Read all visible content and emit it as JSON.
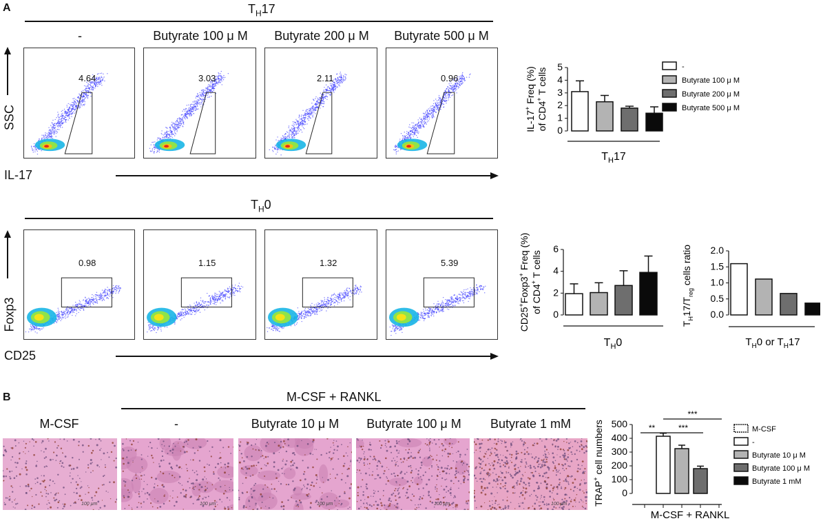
{
  "panel_a": {
    "label": "A",
    "th17_group": "T",
    "th17_sub": "H",
    "th17_tail": "17",
    "th0_group": "T",
    "th0_sub": "H",
    "th0_tail": "0",
    "conditions": [
      "-",
      "Butyrate 100 μ M",
      "Butyrate 200 μ M",
      "Butyrate 500 μ M"
    ],
    "row1_y_label": "SSC",
    "row1_x_label": "IL-17",
    "row1_gate_values": [
      "4.64",
      "3.03",
      "2.11",
      "0.96"
    ],
    "row2_y_label": "Foxp3",
    "row2_x_label": "CD25",
    "row2_gate_values": [
      "0.98",
      "1.15",
      "1.32",
      "5.39"
    ]
  },
  "panel_b": {
    "label": "B",
    "group_label": "M-CSF + RANKL",
    "conditions": [
      "M-CSF",
      "-",
      "Butyrate 10 μ M",
      "Butyrate 100 μ M",
      "Butyrate 1 mM"
    ],
    "scalebar": "100 μm"
  },
  "chart_data": [
    {
      "type": "bar",
      "ylabel": "IL-17+ Freq (%) of CD4+ T cells",
      "xlabel": "TH17",
      "ylim": [
        0,
        5
      ],
      "yticks": [
        0,
        1,
        2,
        3,
        4,
        5
      ],
      "categories": [
        "-",
        "Butyrate 100 μ M",
        "Butyrate 200 μ M",
        "Butyrate 500 μ M"
      ],
      "values": [
        3.1,
        2.3,
        1.8,
        1.4
      ],
      "errors": [
        0.85,
        0.5,
        0.15,
        0.5
      ],
      "colors": [
        "#ffffff",
        "#b3b3b3",
        "#6e6e6e",
        "#0a0a0a"
      ],
      "legend": [
        "-",
        "Butyrate 100 μ M",
        "Butyrate 200 μ M",
        "Butyrate 500 μ M"
      ]
    },
    {
      "type": "bar",
      "ylabel": "CD25+Foxp3+ Freq (%) of CD4+ T cells",
      "xlabel": "TH0",
      "ylim": [
        0,
        6
      ],
      "yticks": [
        0,
        2,
        4,
        6
      ],
      "categories": [
        "-",
        "Butyrate 100 μ M",
        "Butyrate 200 μ M",
        "Butyrate 500 μ M"
      ],
      "values": [
        1.95,
        2.05,
        2.7,
        3.9
      ],
      "errors": [
        0.9,
        0.9,
        1.35,
        1.5
      ],
      "colors": [
        "#ffffff",
        "#b3b3b3",
        "#6e6e6e",
        "#0a0a0a"
      ]
    },
    {
      "type": "bar",
      "ylabel": "TH17/Treg cells ratio",
      "xlabel": "TH0 or TH17",
      "ylim": [
        0,
        2.0
      ],
      "yticks": [
        "0.0",
        "0.5",
        "1.0",
        "1.5",
        "2.0"
      ],
      "categories": [
        "-",
        "Butyrate 100 μ M",
        "Butyrate 200 μ M",
        "Butyrate 500 μ M"
      ],
      "values": [
        1.6,
        1.12,
        0.67,
        0.37
      ],
      "colors": [
        "#ffffff",
        "#b3b3b3",
        "#6e6e6e",
        "#0a0a0a"
      ]
    },
    {
      "type": "bar",
      "ylabel": "TRAP+ cell numbers",
      "xlabel": "M-CSF + RANKL",
      "ylim": [
        0,
        500
      ],
      "yticks": [
        0,
        100,
        200,
        300,
        400,
        500
      ],
      "categories": [
        "M-CSF",
        "-",
        "Butyrate 10 μ M",
        "Butyrate 100 μ M",
        "Butyrate 1 mM"
      ],
      "values": [
        0,
        415,
        325,
        180,
        0
      ],
      "errors": [
        0,
        22,
        25,
        18,
        0
      ],
      "colors": [
        "#ffffff",
        "#ffffff",
        "#b3b3b3",
        "#6e6e6e",
        "#0a0a0a"
      ],
      "legend": [
        "M-CSF",
        "-",
        "Butyrate 10 μ M",
        "Butyrate 100 μ M",
        "Butyrate 1 mM"
      ],
      "significance": [
        {
          "from": 0,
          "to": 1,
          "label": "**"
        },
        {
          "from": 1,
          "to": 3,
          "label": "***"
        },
        {
          "from": 1,
          "to": 4,
          "label": "***"
        }
      ]
    }
  ]
}
